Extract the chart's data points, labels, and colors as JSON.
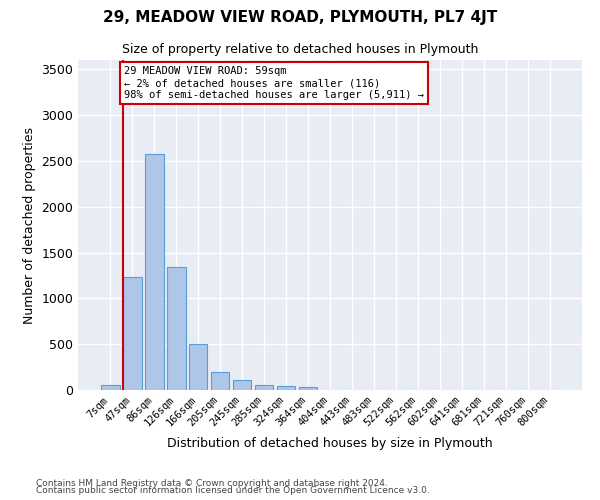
{
  "title": "29, MEADOW VIEW ROAD, PLYMOUTH, PL7 4JT",
  "subtitle": "Size of property relative to detached houses in Plymouth",
  "xlabel": "Distribution of detached houses by size in Plymouth",
  "ylabel": "Number of detached properties",
  "footnote1": "Contains HM Land Registry data © Crown copyright and database right 2024.",
  "footnote2": "Contains public sector information licensed under the Open Government Licence v3.0.",
  "bar_labels": [
    "7sqm",
    "47sqm",
    "86sqm",
    "126sqm",
    "166sqm",
    "205sqm",
    "245sqm",
    "285sqm",
    "324sqm",
    "364sqm",
    "404sqm",
    "443sqm",
    "483sqm",
    "522sqm",
    "562sqm",
    "602sqm",
    "641sqm",
    "681sqm",
    "721sqm",
    "760sqm",
    "800sqm"
  ],
  "bar_values": [
    55,
    1230,
    2580,
    1340,
    500,
    195,
    105,
    50,
    45,
    30,
    0,
    0,
    0,
    0,
    0,
    0,
    0,
    0,
    0,
    0,
    0
  ],
  "bar_color": "#aec6e8",
  "bar_edge_color": "#5a9fd4",
  "bg_color": "#e8ecf5",
  "grid_color": "#ffffff",
  "property_line_color": "#cc0000",
  "annotation_line1": "29 MEADOW VIEW ROAD: 59sqm",
  "annotation_line2": "← 2% of detached houses are smaller (116)",
  "annotation_line3": "98% of semi-detached houses are larger (5,911) →",
  "annotation_box_color": "#cc0000",
  "ylim": [
    0,
    3600
  ],
  "yticks": [
    0,
    500,
    1000,
    1500,
    2000,
    2500,
    3000,
    3500
  ],
  "line_bar_index": 1,
  "bar_width": 0.85
}
